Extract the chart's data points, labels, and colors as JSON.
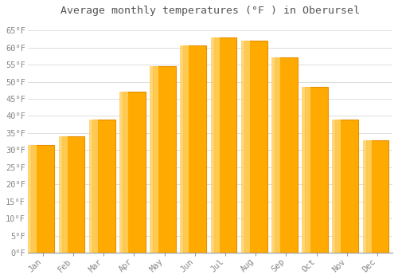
{
  "title": "Average monthly temperatures (°F ) in Oberursel",
  "months": [
    "Jan",
    "Feb",
    "Mar",
    "Apr",
    "May",
    "Jun",
    "Jul",
    "Aug",
    "Sep",
    "Oct",
    "Nov",
    "Dec"
  ],
  "temperatures": [
    31.5,
    34.0,
    39.0,
    47.0,
    54.5,
    60.5,
    63.0,
    62.0,
    57.0,
    48.5,
    39.0,
    33.0
  ],
  "bar_color_main": "#FFAA00",
  "bar_color_light": "#FFD060",
  "bar_color_edge": "#E89000",
  "background_color": "#FFFFFF",
  "grid_color": "#DDDDDD",
  "ylim": [
    0,
    68
  ],
  "yticks": [
    0,
    5,
    10,
    15,
    20,
    25,
    30,
    35,
    40,
    45,
    50,
    55,
    60,
    65
  ],
  "title_fontsize": 9.5,
  "tick_fontsize": 7.5,
  "tick_font_color": "#888888",
  "title_font_color": "#555555",
  "bar_width": 0.75
}
